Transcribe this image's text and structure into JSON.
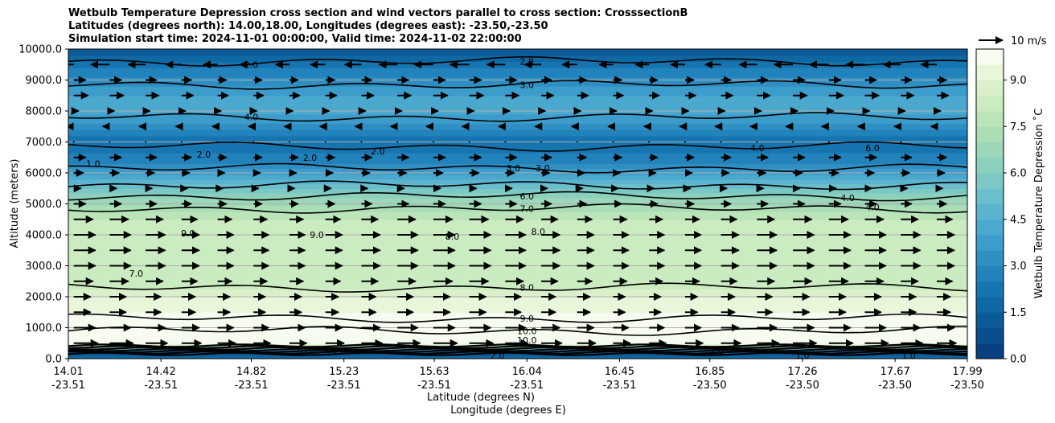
{
  "title_lines": [
    "Wetbulb Temperature Depression cross section and wind vectors parallel to cross section: CrosssectionB",
    "Latitudes (degrees north): 14.00,18.00, Longitudes (degrees east): -23.50,-23.50",
    "Simulation start time: 2024-11-01 00:00:00, Valid time: 2024-11-02 22:00:00"
  ],
  "chart_data": {
    "type": "heatmap",
    "subtype": "filled contour cross section with contour lines and wind vectors",
    "ylabel": "Altitude (meters)",
    "xlabel_line1": "Latitude (degrees N)",
    "xlabel_line2": "Longitude (degrees E)",
    "ylim": [
      0,
      10000
    ],
    "y_ticks": [
      "0.0",
      "1000.0",
      "2000.0",
      "3000.0",
      "4000.0",
      "5000.0",
      "6000.0",
      "7000.0",
      "8000.0",
      "9000.0",
      "10000.0"
    ],
    "x_ticks": [
      {
        "lat": "14.01",
        "lon": "-23.51"
      },
      {
        "lat": "14.42",
        "lon": "-23.51"
      },
      {
        "lat": "14.82",
        "lon": "-23.51"
      },
      {
        "lat": "15.23",
        "lon": "-23.51"
      },
      {
        "lat": "15.63",
        "lon": "-23.51"
      },
      {
        "lat": "16.04",
        "lon": "-23.51"
      },
      {
        "lat": "16.45",
        "lon": "-23.51"
      },
      {
        "lat": "16.85",
        "lon": "-23.50"
      },
      {
        "lat": "17.26",
        "lon": "-23.50"
      },
      {
        "lat": "17.67",
        "lon": "-23.50"
      },
      {
        "lat": "17.99",
        "lon": "-23.50"
      }
    ],
    "grid": "horizontal",
    "colorbar": {
      "label": "Wetbulb Temperature Depression ˚C",
      "range": [
        0,
        10
      ],
      "ticks": [
        "0.0",
        "1.5",
        "3.0",
        "4.5",
        "6.0",
        "7.5",
        "9.0"
      ],
      "levels": 20,
      "colors": [
        "#084081",
        "#0a4d8c",
        "#0c5a97",
        "#0e68a3",
        "#1675b0",
        "#2282bb",
        "#2f8fc3",
        "#3c9ccb",
        "#4ba8ce",
        "#5bb3ce",
        "#6bbecc",
        "#7bc8c4",
        "#8bd0bd",
        "#9bd7b8",
        "#abdeb5",
        "#bbe5b8",
        "#cbebc0",
        "#daf0cb",
        "#e8f6da",
        "#f7fcf0"
      ]
    },
    "vector_key": {
      "label": "10 m/s",
      "speed": 10
    },
    "profile": [
      {
        "alt": 0,
        "value": 2.0
      },
      {
        "alt": 200,
        "value": 1.0
      },
      {
        "alt": 500,
        "value": 10.0
      },
      {
        "alt": 1000,
        "value": 10.0
      },
      {
        "alt": 2000,
        "value": 9.0
      },
      {
        "alt": 2500,
        "value": 8.0
      },
      {
        "alt": 3500,
        "value": 8.0
      },
      {
        "alt": 4500,
        "value": 8.0
      },
      {
        "alt": 5200,
        "value": 6.5
      },
      {
        "alt": 5800,
        "value": 4.5
      },
      {
        "alt": 6300,
        "value": 3.0
      },
      {
        "alt": 7000,
        "value": 2.0
      },
      {
        "alt": 7600,
        "value": 3.5
      },
      {
        "alt": 8200,
        "value": 4.5
      },
      {
        "alt": 8800,
        "value": 3.5
      },
      {
        "alt": 9400,
        "value": 2.5
      },
      {
        "alt": 10000,
        "value": 1.0
      }
    ],
    "contour_lines": [
      {
        "label": "10.0",
        "alt": 900
      },
      {
        "label": "9.0",
        "alt": 1300
      },
      {
        "label": "8.0",
        "alt": 2300
      },
      {
        "label": "7.0",
        "alt": 4850
      },
      {
        "label": "6.0",
        "alt": 5250
      },
      {
        "label": "4.0",
        "alt": 5600
      },
      {
        "label": "3.0",
        "alt": 6150
      },
      {
        "label": "2.0",
        "alt": 6850
      },
      {
        "label": "4.0",
        "alt": 7800
      },
      {
        "label": "3.0",
        "alt": 8850
      },
      {
        "label": "2.0",
        "alt": 9600
      }
    ],
    "contour_labels": [
      {
        "text": "2.0",
        "lat": 16.04,
        "alt": 9600
      },
      {
        "text": "3.0",
        "lat": 16.04,
        "alt": 8850
      },
      {
        "text": "2.0",
        "lat": 14.82,
        "alt": 9500
      },
      {
        "text": "4.0",
        "lat": 14.82,
        "alt": 7800
      },
      {
        "text": "2.0",
        "lat": 14.61,
        "alt": 6600
      },
      {
        "text": "2.0",
        "lat": 15.08,
        "alt": 6500
      },
      {
        "text": "2.0",
        "lat": 15.38,
        "alt": 6700
      },
      {
        "text": "1.0",
        "lat": 14.12,
        "alt": 6300
      },
      {
        "text": "3.0",
        "lat": 15.98,
        "alt": 6150
      },
      {
        "text": "3.0",
        "lat": 16.11,
        "alt": 6150
      },
      {
        "text": "4.0",
        "lat": 17.06,
        "alt": 6800
      },
      {
        "text": "6.0",
        "lat": 17.57,
        "alt": 6800
      },
      {
        "text": "4.0",
        "lat": 17.46,
        "alt": 5200
      },
      {
        "text": "4.0",
        "lat": 17.57,
        "alt": 4900
      },
      {
        "text": "6.0",
        "lat": 16.04,
        "alt": 5250
      },
      {
        "text": "7.0",
        "lat": 16.04,
        "alt": 4850
      },
      {
        "text": "9.0",
        "lat": 14.54,
        "alt": 4050
      },
      {
        "text": "9.0",
        "lat": 15.11,
        "alt": 4000
      },
      {
        "text": "8.0",
        "lat": 15.71,
        "alt": 3950
      },
      {
        "text": "8.0",
        "lat": 16.09,
        "alt": 4100
      },
      {
        "text": "7.0",
        "lat": 14.31,
        "alt": 2750
      },
      {
        "text": "8.0",
        "lat": 16.04,
        "alt": 2300
      },
      {
        "text": "9.0",
        "lat": 16.04,
        "alt": 1300
      },
      {
        "text": "10.0",
        "lat": 16.04,
        "alt": 900
      },
      {
        "text": "10.0",
        "lat": 16.04,
        "alt": 600
      },
      {
        "text": "1.0",
        "lat": 17.26,
        "alt": 100
      },
      {
        "text": "1.0",
        "lat": 17.73,
        "alt": 100
      },
      {
        "text": "2.0",
        "lat": 15.91,
        "alt": 100
      },
      {
        "text": "2.0",
        "lat": 16.88,
        "alt": 250
      },
      {
        "text": "1.0",
        "lat": 15.21,
        "alt": 250
      }
    ],
    "wind_rows": [
      {
        "alt": 9500,
        "u": -8
      },
      {
        "alt": 9000,
        "u": 5
      },
      {
        "alt": 8500,
        "u": 6
      },
      {
        "alt": 8000,
        "u": 2
      },
      {
        "alt": 7500,
        "u": -3
      },
      {
        "alt": 7000,
        "u": 0
      },
      {
        "alt": 6500,
        "u": 5
      },
      {
        "alt": 6000,
        "u": 4
      },
      {
        "alt": 5500,
        "u": 3
      },
      {
        "alt": 5000,
        "u": 5
      },
      {
        "alt": 4500,
        "u": 8
      },
      {
        "alt": 4000,
        "u": 9
      },
      {
        "alt": 3500,
        "u": 9
      },
      {
        "alt": 3000,
        "u": 9
      },
      {
        "alt": 2500,
        "u": 8
      },
      {
        "alt": 2000,
        "u": 7
      },
      {
        "alt": 1500,
        "u": 7
      },
      {
        "alt": 1000,
        "u": 9
      },
      {
        "alt": 500,
        "u": 10
      }
    ]
  }
}
